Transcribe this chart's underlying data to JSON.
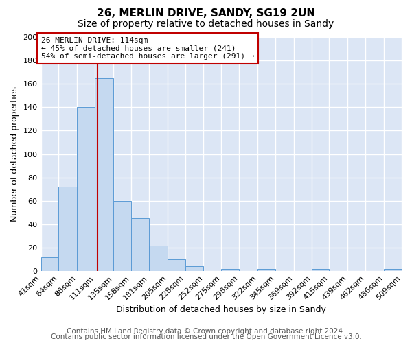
{
  "title": "26, MERLIN DRIVE, SANDY, SG19 2UN",
  "subtitle": "Size of property relative to detached houses in Sandy",
  "xlabel": "Distribution of detached houses by size in Sandy",
  "ylabel": "Number of detached properties",
  "footer_line1": "Contains HM Land Registry data © Crown copyright and database right 2024.",
  "footer_line2": "Contains public sector information licensed under the Open Government Licence v3.0.",
  "bin_labels": [
    "41sqm",
    "64sqm",
    "88sqm",
    "111sqm",
    "135sqm",
    "158sqm",
    "181sqm",
    "205sqm",
    "228sqm",
    "252sqm",
    "275sqm",
    "298sqm",
    "322sqm",
    "345sqm",
    "369sqm",
    "392sqm",
    "415sqm",
    "439sqm",
    "462sqm",
    "486sqm",
    "509sqm"
  ],
  "bin_edges": [
    41,
    64,
    88,
    111,
    135,
    158,
    181,
    205,
    228,
    252,
    275,
    298,
    322,
    345,
    369,
    392,
    415,
    439,
    462,
    486,
    509
  ],
  "bar_heights": [
    12,
    72,
    140,
    165,
    60,
    45,
    22,
    10,
    4,
    0,
    2,
    0,
    2,
    0,
    0,
    2,
    0,
    0,
    0,
    2
  ],
  "bar_color": "#c5d9f0",
  "bar_edge_color": "#5b9bd5",
  "property_value": 114,
  "property_line_color": "#c00000",
  "annotation_text": "26 MERLIN DRIVE: 114sqm\n← 45% of detached houses are smaller (241)\n54% of semi-detached houses are larger (291) →",
  "annotation_box_edge_color": "#c00000",
  "annotation_box_face_color": "#ffffff",
  "ylim": [
    0,
    200
  ],
  "yticks": [
    0,
    20,
    40,
    60,
    80,
    100,
    120,
    140,
    160,
    180,
    200
  ],
  "fig_bg_color": "#ffffff",
  "plot_bg_color": "#dce6f5",
  "grid_color": "#ffffff",
  "title_fontsize": 11,
  "subtitle_fontsize": 10,
  "axis_label_fontsize": 9,
  "tick_fontsize": 8,
  "footer_fontsize": 7.5
}
